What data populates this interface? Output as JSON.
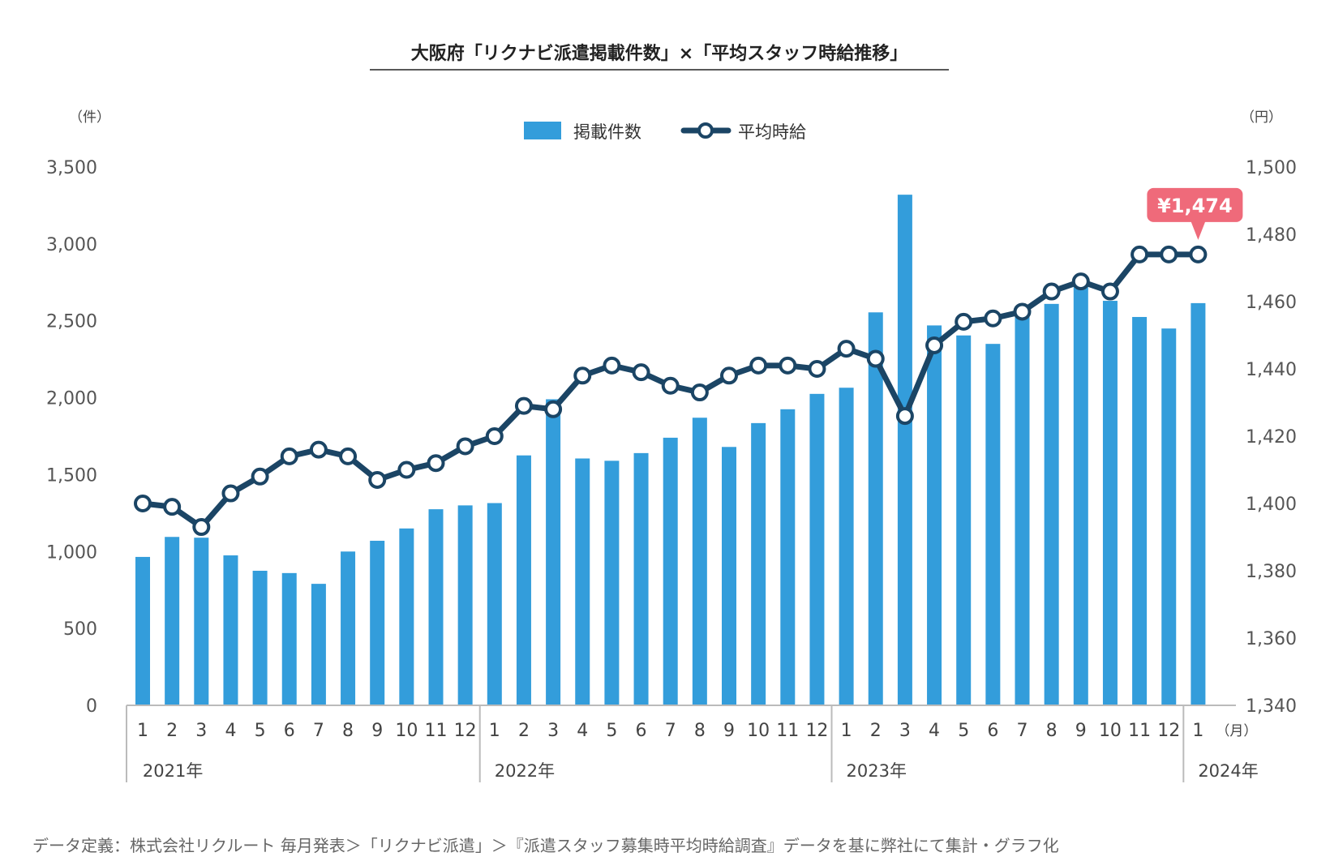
{
  "title": "大阪府「リクナビ派遣掲載件数」×「平均スタッフ時給推移」",
  "left_unit": "（件）",
  "right_unit": "（円）",
  "month_unit": "（月）",
  "source_note": "データ定義：株式会社リクルート 毎月発表＞「リクナビ派遣」＞『派遣スタッフ募集時平均時給調査』データを基に弊社にて集計・グラフ化",
  "callout": "¥1,474",
  "colors": {
    "bar": "#339ddb",
    "line": "#1b4565",
    "callout": "#ef6a7a"
  },
  "chart_data": {
    "type": "bar",
    "categories": [
      "1",
      "2",
      "3",
      "4",
      "5",
      "6",
      "7",
      "8",
      "9",
      "10",
      "11",
      "12",
      "1",
      "2",
      "3",
      "4",
      "5",
      "6",
      "7",
      "8",
      "9",
      "10",
      "11",
      "12",
      "1",
      "2",
      "3",
      "4",
      "5",
      "6",
      "7",
      "8",
      "9",
      "10",
      "11",
      "12",
      "1"
    ],
    "years": [
      {
        "label": "2021年",
        "start": 0,
        "count": 12
      },
      {
        "label": "2022年",
        "start": 12,
        "count": 12
      },
      {
        "label": "2023年",
        "start": 24,
        "count": 12
      },
      {
        "label": "2024年",
        "start": 36,
        "count": 1
      }
    ],
    "series": [
      {
        "name": "掲載件数",
        "type": "bar",
        "axis": "left",
        "values": [
          965,
          1095,
          1090,
          975,
          875,
          860,
          790,
          1000,
          1070,
          1150,
          1275,
          1300,
          1315,
          1625,
          1990,
          1605,
          1590,
          1640,
          1740,
          1870,
          1680,
          1835,
          1925,
          2025,
          2065,
          2555,
          3320,
          2470,
          2405,
          2350,
          2525,
          2610,
          2740,
          2630,
          2525,
          2450,
          2615
        ]
      },
      {
        "name": "平均時給",
        "type": "line",
        "axis": "right",
        "values": [
          1400,
          1399,
          1393,
          1403,
          1408,
          1414,
          1416,
          1414,
          1407,
          1410,
          1412,
          1417,
          1420,
          1429,
          1428,
          1438,
          1441,
          1439,
          1435,
          1433,
          1438,
          1441,
          1441,
          1440,
          1446,
          1443,
          1426,
          1447,
          1454,
          1455,
          1457,
          1463,
          1466,
          1463,
          1474,
          1474,
          1474
        ]
      }
    ],
    "y_left": {
      "min": 0,
      "max": 3500,
      "ticks": [
        "0",
        "500",
        "1,000",
        "1,500",
        "2,000",
        "2,500",
        "3,000",
        "3,500"
      ]
    },
    "y_right": {
      "min": 1340,
      "max": 1500,
      "ticks": [
        "1,340",
        "1,360",
        "1,380",
        "1,400",
        "1,420",
        "1,440",
        "1,460",
        "1,480",
        "1,500"
      ]
    },
    "legend_position": "top-center",
    "grid": false
  }
}
